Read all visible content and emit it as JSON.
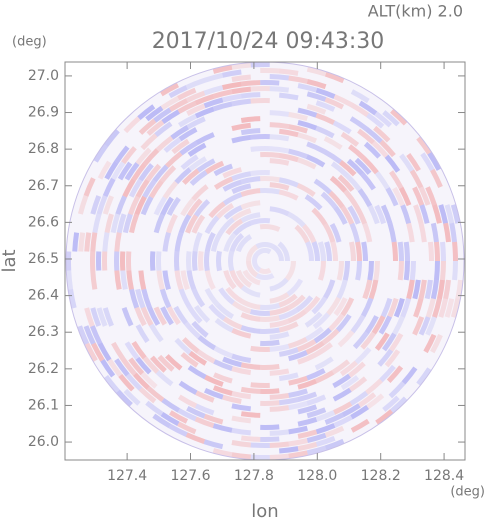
{
  "chart_data": {
    "type": "ppi",
    "title": "2017/10/24 09:43:30",
    "subtitle": "ALT(km) 2.0",
    "x_label": "lon",
    "y_label": "lat",
    "x_unit": "(deg)",
    "y_unit": "(deg)",
    "xlim": [
      127.204,
      128.466
    ],
    "ylim": [
      25.951,
      27.038
    ],
    "xticks": [
      127.4,
      127.6,
      127.8,
      {
        "value": 128.0,
        "label": "128.0"
      },
      128.2,
      128.4
    ],
    "yticks": [
      {
        "value": 26.0,
        "label": "26.0"
      },
      26.1,
      26.2,
      26.3,
      26.4,
      26.5,
      26.6,
      26.7,
      26.8,
      26.9,
      {
        "value": 27.0,
        "label": "27.0"
      }
    ]
  }
}
